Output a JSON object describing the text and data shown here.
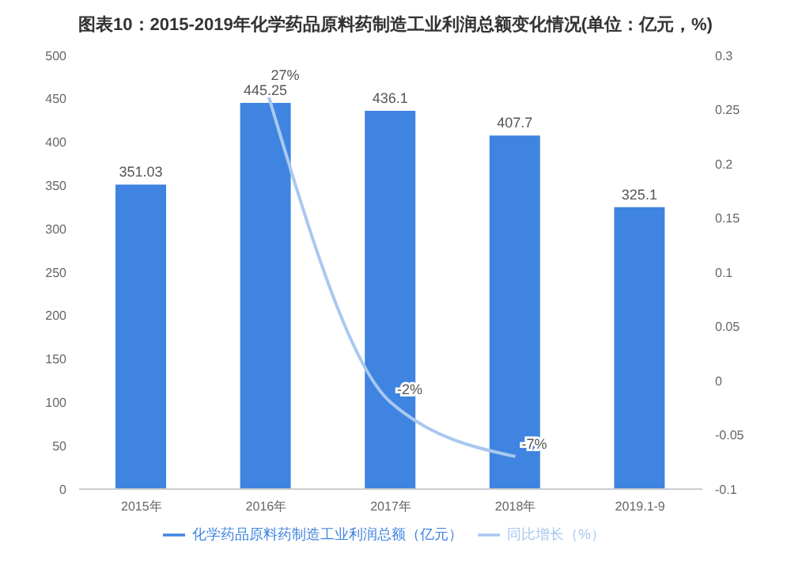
{
  "chart_data": {
    "type": "bar",
    "title": "图表10：2015-2019年化学药品原料药制造工业利润总额变化情况(单位：亿元，%)",
    "categories": [
      "2015年",
      "2016年",
      "2017年",
      "2018年",
      "2019.1-9"
    ],
    "series": [
      {
        "name": "化学药品原料药制造工业利润总额（亿元）",
        "color": "#3f84e0",
        "values": [
          351.03,
          445.25,
          436.1,
          407.7,
          325.1
        ],
        "value_labels": [
          "351.03",
          "445.25",
          "436.1",
          "407.7",
          "325.1"
        ]
      },
      {
        "name": "同比增长（%）",
        "type": "line",
        "axis": "y2",
        "color": "#a9c8f0",
        "values": [
          null,
          0.27,
          -0.02,
          -0.07,
          null
        ],
        "value_labels": [
          null,
          "27%",
          "-2%",
          "-7%",
          null
        ]
      }
    ],
    "ylim": [
      0,
      500
    ],
    "yticks": [
      0,
      50,
      100,
      150,
      200,
      250,
      300,
      350,
      400,
      450,
      500
    ],
    "y2lim": [
      -0.1,
      0.3
    ],
    "y2ticks": [
      -0.1,
      -0.05,
      0,
      0.05,
      0.1,
      0.15,
      0.2,
      0.25,
      0.3
    ],
    "grid": false,
    "legend": "bottom",
    "marker": "none",
    "line_style": "solid"
  }
}
